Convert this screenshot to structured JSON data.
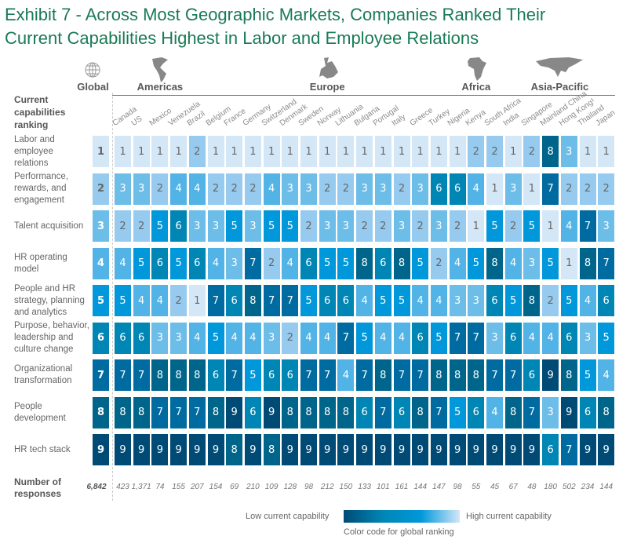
{
  "title_line1": "Exhibit 7 - Across Most Geographic Markets, Companies Ranked Their",
  "title_line2": "Current Capabilities Highest in Labor and Employee Relations",
  "chart_data": {
    "type": "heatmap",
    "row_header": "Current capabilities ranking",
    "regions": [
      {
        "name": "Global",
        "icon": "globe-icon",
        "columns": [
          "Global"
        ]
      },
      {
        "name": "Americas",
        "icon": "americas-map-icon",
        "columns": [
          "Canada",
          "US",
          "Mexico",
          "Venezuela",
          "Brazil"
        ]
      },
      {
        "name": "Europe",
        "icon": "europe-map-icon",
        "columns": [
          "Belgium",
          "France",
          "Germany",
          "Switzerland",
          "Denmark",
          "Sweden",
          "Norway",
          "Lithuania",
          "Bulgaria",
          "Portugal",
          "Italy",
          "Greece",
          "Turkey"
        ]
      },
      {
        "name": "Africa",
        "icon": "africa-map-icon",
        "columns": [
          "Nigeria",
          "Kenya",
          "South Africa"
        ]
      },
      {
        "name": "Asia-Pacific",
        "icon": "asia-map-icon",
        "columns": [
          "India",
          "Singapore",
          "Mainland China",
          "Hong Kong¹",
          "Thailand",
          "Japan"
        ]
      }
    ],
    "columns": [
      "Global",
      "Canada",
      "US",
      "Mexico",
      "Venezuela",
      "Brazil",
      "Belgium",
      "France",
      "Germany",
      "Switzerland",
      "Denmark",
      "Sweden",
      "Norway",
      "Lithuania",
      "Bulgaria",
      "Portugal",
      "Italy",
      "Greece",
      "Turkey",
      "Nigeria",
      "Kenya",
      "South Africa",
      "India",
      "Singapore",
      "Mainland China",
      "Hong Kong¹",
      "Thailand",
      "Japan"
    ],
    "rows": [
      {
        "label": "Labor and employee relations",
        "values": [
          1,
          1,
          1,
          1,
          1,
          2,
          1,
          1,
          1,
          1,
          1,
          1,
          1,
          1,
          1,
          1,
          1,
          1,
          1,
          1,
          2,
          2,
          1,
          2,
          8,
          3,
          1,
          1
        ]
      },
      {
        "label": "Performance, rewards, and engagement",
        "values": [
          2,
          3,
          3,
          2,
          4,
          4,
          2,
          2,
          2,
          4,
          3,
          3,
          2,
          2,
          3,
          3,
          2,
          3,
          6,
          6,
          4,
          1,
          3,
          1,
          7,
          2,
          2,
          2
        ]
      },
      {
        "label": "Talent acquisition",
        "values": [
          3,
          2,
          2,
          5,
          6,
          3,
          3,
          5,
          3,
          5,
          5,
          2,
          3,
          3,
          2,
          2,
          3,
          2,
          3,
          2,
          1,
          5,
          2,
          5,
          1,
          4,
          7,
          3
        ]
      },
      {
        "label": "HR operating model",
        "values": [
          4,
          4,
          5,
          6,
          5,
          6,
          4,
          3,
          7,
          2,
          4,
          6,
          5,
          5,
          8,
          6,
          8,
          5,
          2,
          4,
          5,
          8,
          4,
          3,
          5,
          1,
          8,
          7
        ]
      },
      {
        "label": "People and HR strategy, planning and analytics",
        "values": [
          5,
          5,
          4,
          4,
          2,
          1,
          7,
          6,
          8,
          7,
          7,
          5,
          6,
          6,
          4,
          5,
          5,
          4,
          4,
          3,
          3,
          6,
          5,
          8,
          2,
          5,
          4,
          6
        ]
      },
      {
        "label": "Purpose, behavior, leadership and culture change",
        "values": [
          6,
          6,
          6,
          3,
          3,
          4,
          5,
          4,
          4,
          3,
          2,
          4,
          4,
          7,
          5,
          4,
          4,
          6,
          5,
          7,
          7,
          3,
          6,
          4,
          4,
          6,
          3,
          5
        ]
      },
      {
        "label": "Organizational transformation",
        "values": [
          7,
          7,
          7,
          8,
          8,
          8,
          6,
          7,
          5,
          6,
          6,
          7,
          7,
          4,
          7,
          8,
          7,
          7,
          8,
          8,
          8,
          7,
          7,
          6,
          9,
          8,
          5,
          4
        ]
      },
      {
        "label": "People development",
        "values": [
          8,
          8,
          8,
          7,
          7,
          7,
          8,
          9,
          6,
          9,
          8,
          8,
          8,
          8,
          6,
          7,
          6,
          8,
          7,
          5,
          6,
          4,
          8,
          7,
          3,
          9,
          6,
          8
        ]
      },
      {
        "label": "HR tech stack",
        "values": [
          9,
          9,
          9,
          9,
          9,
          9,
          9,
          8,
          9,
          8,
          9,
          9,
          9,
          9,
          9,
          9,
          9,
          9,
          9,
          9,
          9,
          9,
          9,
          9,
          6,
          7,
          9,
          9
        ]
      }
    ],
    "responses_label": "Number of responses",
    "responses": [
      "6,842",
      "423",
      "1,371",
      "74",
      "155",
      "207",
      "154",
      "69",
      "210",
      "109",
      "128",
      "98",
      "212",
      "150",
      "133",
      "101",
      "161",
      "144",
      "147",
      "98",
      "55",
      "45",
      "67",
      "48",
      "180",
      "502",
      "234",
      "144"
    ],
    "color_scale": {
      "1": "#d3e7f7",
      "2": "#96cbef",
      "3": "#6dbde9",
      "4": "#52b3e6",
      "5": "#0098db",
      "6": "#0086b5",
      "7": "#006ba0",
      "8": "#00658a",
      "9": "#004b75"
    },
    "legend": {
      "low": "Low current capability",
      "high": "High current capability",
      "caption": "Color code for global ranking"
    }
  }
}
